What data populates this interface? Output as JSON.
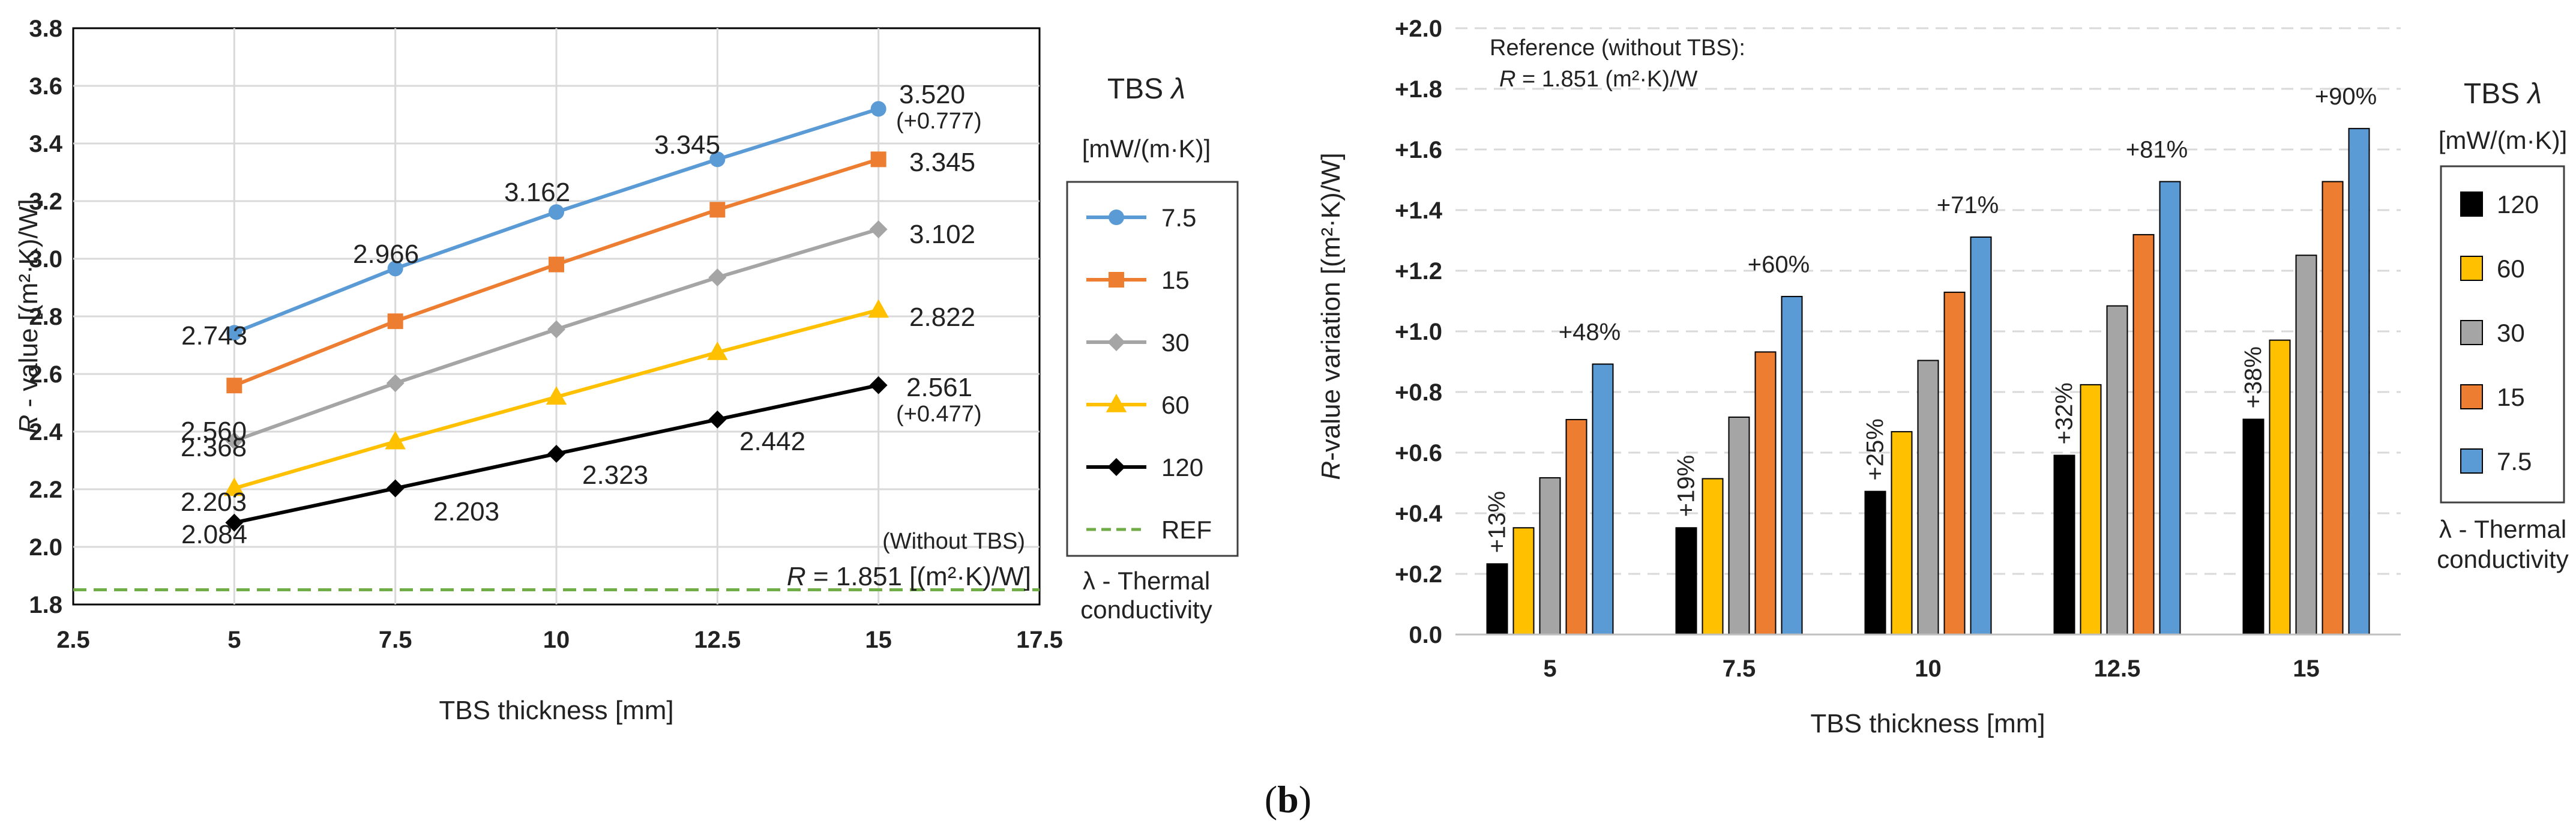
{
  "chart_data": [
    {
      "type": "line",
      "x": [
        5,
        7.5,
        10,
        12.5,
        15
      ],
      "xlabel": "TBS thickness [mm]",
      "ylabel_italic": "R",
      "ylabel_rest": " - value  [(m²·K)/W]",
      "xlim": [
        2.5,
        17.5
      ],
      "ylim": [
        1.8,
        3.8
      ],
      "xticks": [
        "2.5",
        "5",
        "7.5",
        "10",
        "12.5",
        "15",
        "17.5"
      ],
      "yticks": [
        "1.8",
        "2.0",
        "2.2",
        "2.4",
        "2.6",
        "2.8",
        "3.0",
        "3.2",
        "3.4",
        "3.6",
        "3.8"
      ],
      "series": [
        {
          "name": "7.5",
          "color": "#5B9BD5",
          "marker": "circle",
          "values": [
            2.743,
            2.966,
            3.162,
            3.345,
            3.52
          ]
        },
        {
          "name": "15",
          "color": "#ED7D31",
          "marker": "square",
          "values": [
            2.56,
            2.783,
            2.98,
            3.17,
            3.345
          ]
        },
        {
          "name": "30",
          "color": "#A5A5A5",
          "marker": "diamond",
          "values": [
            2.368,
            2.568,
            2.755,
            2.935,
            3.102
          ]
        },
        {
          "name": "60",
          "color": "#FFC000",
          "marker": "triangle",
          "values": [
            2.203,
            2.365,
            2.52,
            2.675,
            2.822
          ]
        },
        {
          "name": "120",
          "color": "#000000",
          "marker": "diamond",
          "values": [
            2.084,
            2.203,
            2.323,
            2.442,
            2.561
          ]
        }
      ],
      "reference": {
        "name": "REF",
        "color": "#70AD47",
        "value": 1.851
      },
      "data_labels": {
        "s7_5": [
          "2.743",
          "2.966",
          "3.162",
          "3.345",
          "3.520"
        ],
        "s7_5_note": "(+0.777)",
        "s15_last": "3.345",
        "s15_first": "2.560",
        "s30_first": "2.368",
        "s30_last": "3.102",
        "s60_first": "2.203",
        "s60_last": "2.822",
        "s120": [
          "2.084",
          "2.203",
          "2.323",
          "2.442",
          "2.561"
        ],
        "s120_note": "(+0.477)"
      },
      "ref_annotation_1": "(Without TBS)",
      "ref_annotation_2_italic": "R",
      "ref_annotation_2_rest": " = 1.851 [(m²·K)/W]",
      "legend_title_1": "TBS ",
      "legend_title_lambda": "λ",
      "legend_units": "[mW/(m·K)]",
      "legend_note_1": "λ - Thermal",
      "legend_note_2": "conductivity"
    },
    {
      "type": "bar",
      "categories": [
        "5",
        "7.5",
        "10",
        "12.5",
        "15"
      ],
      "xlabel": "TBS thickness [mm]",
      "ylabel_italic": "R",
      "ylabel_rest": "-value variation [(m²·K)/W]",
      "ylim": [
        0,
        2.0
      ],
      "yticks": [
        "0.0",
        "+0.2",
        "+0.4",
        "+0.6",
        "+0.8",
        "+1.0",
        "+1.2",
        "+1.4",
        "+1.6",
        "+1.8",
        "+2.0"
      ],
      "series": [
        {
          "name": "120",
          "color": "#000000",
          "values": [
            0.233,
            0.352,
            0.472,
            0.591,
            0.71
          ]
        },
        {
          "name": "60",
          "color": "#FFC000",
          "values": [
            0.352,
            0.514,
            0.669,
            0.824,
            0.971
          ]
        },
        {
          "name": "30",
          "color": "#A5A5A5",
          "values": [
            0.517,
            0.717,
            0.904,
            1.084,
            1.251
          ]
        },
        {
          "name": "15",
          "color": "#ED7D31",
          "values": [
            0.709,
            0.932,
            1.129,
            1.319,
            1.494
          ]
        },
        {
          "name": "7.5",
          "color": "#5B9BD5",
          "values": [
            0.892,
            1.115,
            1.311,
            1.494,
            1.669
          ]
        }
      ],
      "pct_low": [
        "+13%",
        "+19%",
        "+25%",
        "+32%",
        "+38%"
      ],
      "pct_high": [
        "+48%",
        "+60%",
        "+71%",
        "+81%",
        "+90%"
      ],
      "reference_line_1": "Reference (without TBS):",
      "reference_line_2_italic": "R",
      "reference_line_2_rest": " = 1.851 (m²·K)/W",
      "legend_title_1": "TBS ",
      "legend_title_lambda": "λ",
      "legend_units": "[mW/(m·K)]",
      "legend_note_1": "λ - Thermal",
      "legend_note_2": "conductivity"
    }
  ],
  "caption": {
    "open": "(",
    "letter": "b",
    "close": ")"
  }
}
